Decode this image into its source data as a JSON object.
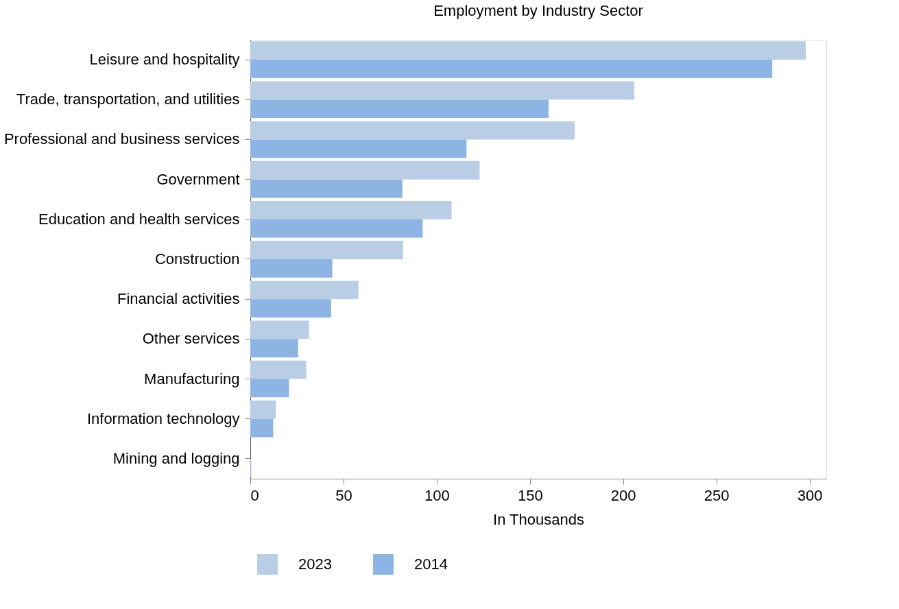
{
  "chart_data": {
    "type": "bar",
    "orientation": "horizontal",
    "title": "Employment by Industry Sector",
    "xlabel": "In Thousands",
    "categories": [
      "Leisure and hospitality",
      "Trade, transportation, and utilities",
      "Professional and business services",
      "Government",
      "Education and health services",
      "Construction",
      "Financial activities",
      "Other services",
      "Manufacturing",
      "Information technology",
      "Mining and logging"
    ],
    "series": [
      {
        "name": "2023",
        "color": "#b9cde5",
        "values": [
          298,
          206,
          174,
          123,
          108,
          82,
          58,
          31.5,
          30,
          13.7,
          null
        ]
      },
      {
        "name": "2014",
        "color": "#8eb4e3",
        "values": [
          280,
          160,
          116,
          81.6,
          92.5,
          44,
          43.4,
          25.7,
          20.8,
          12.3,
          0.5
        ]
      }
    ],
    "xlim": [
      0,
      309
    ],
    "xticks": [
      0,
      50,
      100,
      150,
      200,
      250,
      300
    ],
    "grid": false,
    "legend": "bottom"
  }
}
